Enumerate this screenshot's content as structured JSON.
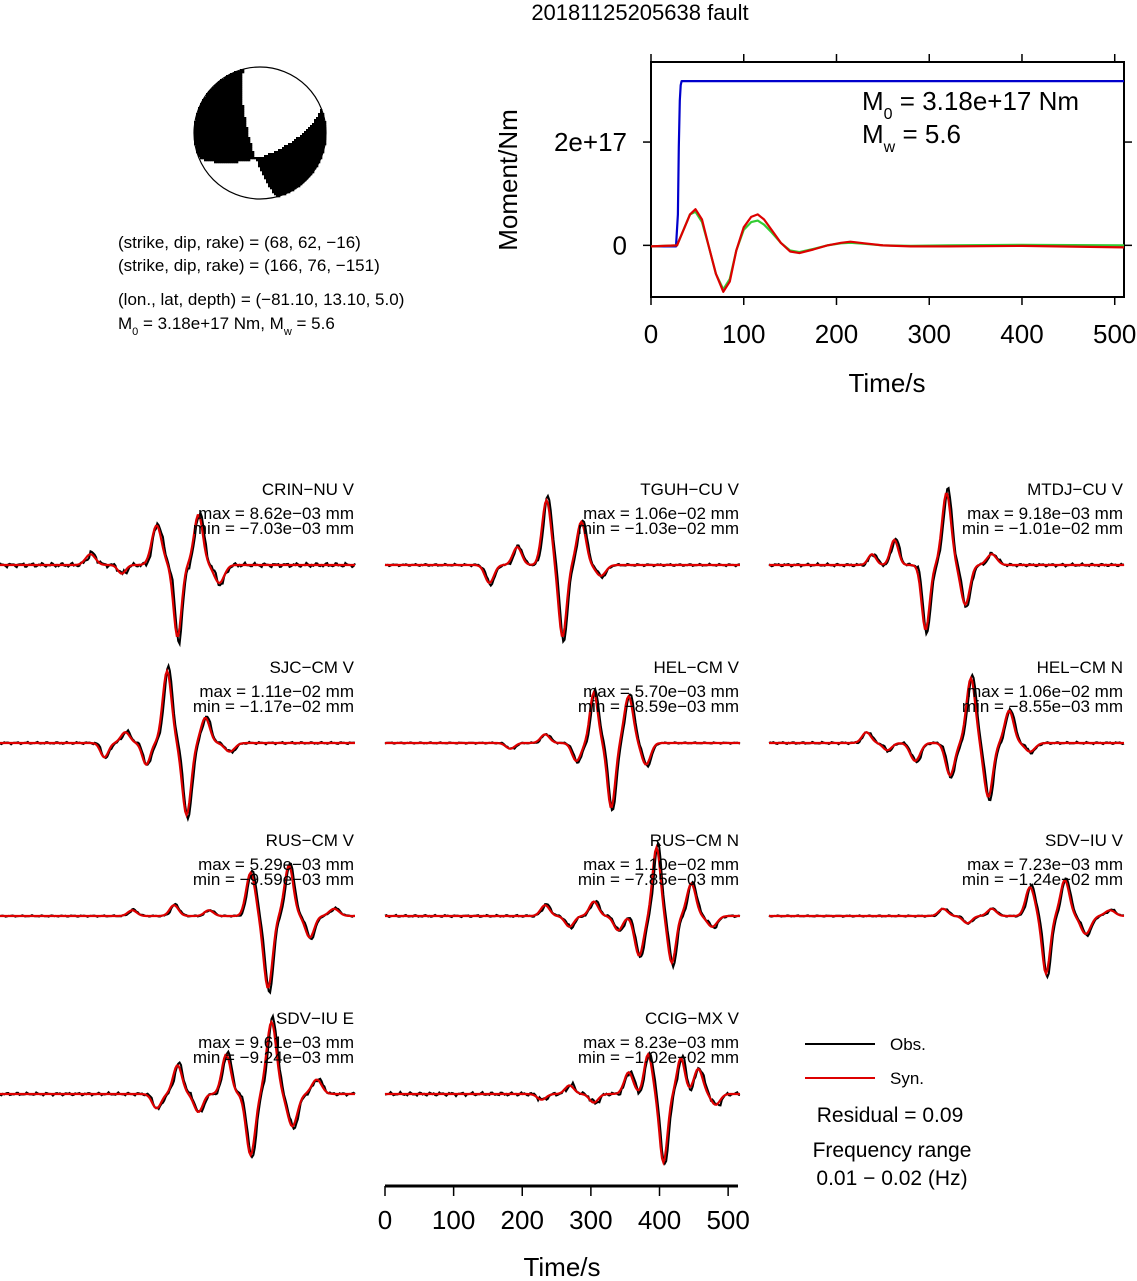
{
  "title": "20181125205638 fault",
  "mechanism": {
    "nodal_plane_1": "(strike, dip, rake) = (68, 62, −16)",
    "nodal_plane_2": "(strike, dip, rake) = (166, 76, −151)",
    "location": "(lon., lat, depth) = (−81.10, 13.10, 5.0)",
    "moment_prefix": "M",
    "moment_sub": "0",
    "moment_mid": " = 3.18e+17 Nm, M",
    "moment_sub2": "w",
    "moment_end": " = 5.6",
    "strike": 68,
    "dip": 62,
    "rake": -16
  },
  "chart_data": [
    {
      "type": "line",
      "name": "moment-rate",
      "xlabel": "Time/s",
      "ylabel": "Moment/Nm",
      "xlim": [
        0,
        510
      ],
      "ylim": [
        -1e+17,
        3.55e+17
      ],
      "xticks": [
        0,
        100,
        200,
        300,
        400,
        500
      ],
      "yticks": [
        {
          "value": 0,
          "label": "0"
        },
        {
          "value": 2e+17,
          "label": "2e+17"
        }
      ],
      "annotation": {
        "m0_prefix": "M",
        "m0_sub": "0",
        "m0_text": " = 3.18e+17 Nm",
        "mw_prefix": "M",
        "mw_sub": "w",
        "mw_text": " = 5.6"
      },
      "series": [
        {
          "color": "#0000cc",
          "x": [
            0,
            27,
            29,
            30,
            31,
            32,
            33,
            34,
            510
          ],
          "y": [
            -2000000000000000.0,
            -2000000000000000.0,
            6e+16,
            1.9e+17,
            2.8e+17,
            3.1e+17,
            3.18e+17,
            3.18e+17,
            3.18e+17
          ]
        },
        {
          "color": "#33cc33",
          "x": [
            0,
            28,
            35,
            42,
            48,
            55,
            62,
            70,
            78,
            85,
            92,
            100,
            108,
            115,
            122,
            130,
            140,
            150,
            160,
            175,
            190,
            205,
            215,
            230,
            250,
            280,
            320,
            400,
            510
          ],
          "y": [
            -2000000000000000.0,
            0.0,
            3e+16,
            6e+16,
            6.5e+16,
            4.5e+16,
            0.0,
            -5.5e+16,
            -8.5e+16,
            -6.5e+16,
            -1e+16,
            3e+16,
            4.5e+16,
            4.8e+16,
            4e+16,
            2.5e+16,
            5000000000000000.0,
            -1e+16,
            -1.3e+16,
            -7000000000000000.0,
            0.0,
            4000000000000000.0,
            5000000000000000.0,
            3000000000000000.0,
            0.0,
            -1000000000000000.0,
            0.0,
            1000000000000000.0,
            0.0
          ]
        },
        {
          "color": "#dd0000",
          "x": [
            0,
            28,
            35,
            42,
            48,
            55,
            62,
            70,
            78,
            85,
            92,
            100,
            108,
            115,
            122,
            130,
            140,
            150,
            160,
            175,
            190,
            205,
            215,
            230,
            250,
            280,
            320,
            400,
            510
          ],
          "y": [
            -2000000000000000.0,
            0.0,
            3e+16,
            6e+16,
            7e+16,
            5e+16,
            0.0,
            -5.5e+16,
            -9e+16,
            -7e+16,
            -1e+16,
            3.5e+16,
            5.5e+16,
            6e+16,
            5e+16,
            3e+16,
            5000000000000000.0,
            -1.2e+16,
            -1.5e+16,
            -8000000000000000.0,
            0.0,
            5000000000000000.0,
            7000000000000000.0,
            4000000000000000.0,
            0.0,
            -2000000000000000.0,
            -2000000000000000.0,
            -1000000000000000.0,
            -4000000000000000.0
          ]
        }
      ]
    },
    {
      "type": "line",
      "name": "waveform-fits",
      "xlabel": "Time/s",
      "xlim": [
        0,
        510
      ],
      "xticks": [
        0,
        100,
        200,
        300,
        400,
        500
      ],
      "legend": [
        {
          "label": "Obs.",
          "color": "#000000"
        },
        {
          "label": "Syn.",
          "color": "#dd0000"
        }
      ],
      "legend_position": "bottom-right",
      "residual": "Residual = 0.09",
      "freq_title": "Frequency range",
      "freq_range": "0.01 − 0.02 (Hz)",
      "stations": [
        {
          "label": "CRIN−NU V",
          "max": "max = 8.62e−03 mm",
          "min": "min = −7.03e−03 mm",
          "wave": [
            [
              130,
              0.15,
              10
            ],
            [
              175,
              -0.12,
              8
            ],
            [
              225,
              0.55,
              10
            ],
            [
              255,
              -1.0,
              8
            ],
            [
              285,
              0.7,
              9
            ],
            [
              315,
              -0.25,
              10
            ]
          ],
          "obs_extra": [
            [
              0,
              0,
              0
            ]
          ],
          "noise": 0.06
        },
        {
          "label": "TGUH−CU V",
          "max": "max = 1.06e−02 mm",
          "min": "min = −1.03e−02 mm",
          "wave": [
            [
              150,
              -0.25,
              9
            ],
            [
              190,
              0.25,
              9
            ],
            [
              232,
              0.9,
              9
            ],
            [
              255,
              -1.0,
              8
            ],
            [
              282,
              0.6,
              9
            ],
            [
              310,
              -0.15,
              10
            ]
          ],
          "obs_extra": [
            [
              0,
              0,
              0
            ]
          ],
          "noise": 0.03
        },
        {
          "label": "MTDJ−CU V",
          "max": "max = 9.18e−03 mm",
          "min": "min = −1.01e−02 mm",
          "wave": [
            [
              148,
              0.15,
              8
            ],
            [
              180,
              0.35,
              8
            ],
            [
              225,
              -0.9,
              8
            ],
            [
              255,
              1.0,
              9
            ],
            [
              282,
              -0.55,
              9
            ],
            [
              320,
              0.15,
              10
            ]
          ],
          "obs_extra": [
            [
              0,
              0,
              0
            ]
          ],
          "noise": 0.04
        },
        {
          "label": "SJC−CM V",
          "max": "max = 1.11e−02 mm",
          "min": "min = −1.17e−02 mm",
          "wave": [
            [
              150,
              -0.2,
              8
            ],
            [
              180,
              0.15,
              9
            ],
            [
              210,
              -0.3,
              8
            ],
            [
              240,
              1.0,
              9
            ],
            [
              268,
              -1.0,
              9
            ],
            [
              295,
              0.35,
              9
            ],
            [
              330,
              -0.12,
              10
            ]
          ],
          "obs_extra": [
            [
              0,
              0,
              0
            ]
          ],
          "noise": 0.03
        },
        {
          "label": "HEL−CM V",
          "max": "max = 5.70e−03 mm",
          "min": "min = −8.59e−03 mm",
          "wave": [
            [
              180,
              -0.08,
              9
            ],
            [
              230,
              0.12,
              9
            ],
            [
              275,
              -0.25,
              9
            ],
            [
              300,
              0.7,
              8
            ],
            [
              325,
              -0.9,
              8
            ],
            [
              350,
              0.65,
              9
            ],
            [
              375,
              -0.3,
              9
            ]
          ],
          "obs_extra": [
            [
              0,
              0,
              0
            ]
          ],
          "noise": 0.02
        },
        {
          "label": "HEL−CM N",
          "max": "max = 1.06e−02 mm",
          "min": "min = −8.55e−03 mm",
          "wave": [
            [
              140,
              0.15,
              9
            ],
            [
              170,
              -0.1,
              9
            ],
            [
              210,
              -0.25,
              10
            ],
            [
              260,
              -0.45,
              9
            ],
            [
              290,
              0.9,
              9
            ],
            [
              315,
              -0.75,
              9
            ],
            [
              345,
              0.45,
              9
            ],
            [
              375,
              -0.12,
              10
            ]
          ],
          "obs_extra": [
            [
              0,
              0,
              0
            ]
          ],
          "noise": 0.03
        },
        {
          "label": "RUS−CM V",
          "max": "max = 5.29e−03 mm",
          "min": "min = −9.59e−03 mm",
          "wave": [
            [
              190,
              0.08,
              9
            ],
            [
              250,
              0.15,
              9
            ],
            [
              300,
              0.08,
              9
            ],
            [
              360,
              0.6,
              9
            ],
            [
              385,
              -1.0,
              9
            ],
            [
              415,
              0.7,
              9
            ],
            [
              445,
              -0.3,
              9
            ],
            [
              480,
              0.1,
              10
            ]
          ],
          "obs_extra": [
            [
              0,
              0,
              0
            ]
          ],
          "noise": 0.02
        },
        {
          "label": "RUS−CM N",
          "max": "max = 1.10e−02 mm",
          "min": "min = −7.85e−03 mm",
          "wave": [
            [
              230,
              0.15,
              9
            ],
            [
              265,
              -0.15,
              9
            ],
            [
              300,
              0.2,
              9
            ],
            [
              335,
              -0.2,
              9
            ],
            [
              365,
              -0.55,
              9
            ],
            [
              390,
              0.95,
              8
            ],
            [
              412,
              -0.65,
              8
            ],
            [
              440,
              0.45,
              9
            ],
            [
              470,
              -0.15,
              10
            ]
          ],
          "obs_extra": [
            [
              0,
              0,
              0
            ]
          ],
          "noise": 0.03
        },
        {
          "label": "SDV−IU V",
          "max": "max = 7.23e−03 mm",
          "min": "min = −1.24e−02 mm",
          "wave": [
            [
              250,
              0.1,
              9
            ],
            [
              285,
              -0.1,
              9
            ],
            [
              320,
              0.1,
              9
            ],
            [
              375,
              0.4,
              9
            ],
            [
              398,
              -0.8,
              8
            ],
            [
              425,
              0.5,
              9
            ],
            [
              455,
              -0.25,
              10
            ],
            [
              490,
              0.08,
              10
            ]
          ],
          "obs_extra": [
            [
              0,
              0,
              0
            ]
          ],
          "noise": 0.02
        },
        {
          "label": "SDV−IU E",
          "max": "max = 9.61e−03 mm",
          "min": "min = −9.24e−03 mm",
          "wave": [
            [
              225,
              -0.2,
              9
            ],
            [
              255,
              0.4,
              9
            ],
            [
              285,
              -0.25,
              9
            ],
            [
              325,
              0.55,
              9
            ],
            [
              360,
              -0.85,
              9
            ],
            [
              390,
              1.0,
              10
            ],
            [
              420,
              -0.45,
              10
            ],
            [
              455,
              0.2,
              10
            ]
          ],
          "obs_extra": [
            [
              0,
              0,
              0
            ]
          ],
          "noise": 0.04
        },
        {
          "label": "CCIG−MX V",
          "max": "max = 8.23e−03 mm",
          "min": "min = −1.02e−02 mm",
          "wave": [
            [
              225,
              -0.08,
              9
            ],
            [
              265,
              0.12,
              9
            ],
            [
              300,
              -0.12,
              9
            ],
            [
              350,
              0.3,
              9
            ],
            [
              378,
              0.55,
              8
            ],
            [
              400,
              -0.95,
              8
            ],
            [
              425,
              0.5,
              8
            ],
            [
              450,
              0.35,
              9
            ],
            [
              475,
              -0.15,
              9
            ]
          ],
          "obs_extra": [
            [
              0,
              0,
              0
            ]
          ],
          "noise": 0.05
        }
      ]
    }
  ]
}
